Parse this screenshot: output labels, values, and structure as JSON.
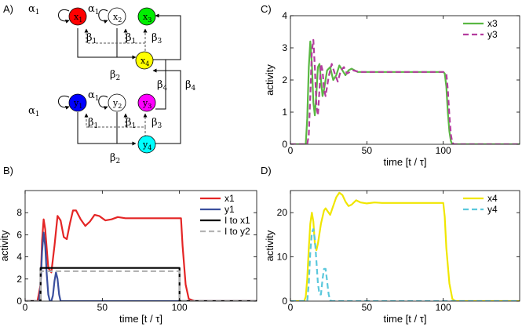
{
  "panel_letters": {
    "A": "A)",
    "B": "B)",
    "C": "C)",
    "D": "D)"
  },
  "diagram": {
    "nodes_top": [
      {
        "id": "x1",
        "base": "x",
        "sub": "1",
        "color": "#ff0000"
      },
      {
        "id": "x2",
        "base": "x",
        "sub": "2",
        "color": "#ffffff"
      },
      {
        "id": "x3",
        "base": "x",
        "sub": "3",
        "color": "#00ee00"
      },
      {
        "id": "x4",
        "base": "x",
        "sub": "4",
        "color": "#ffff00"
      }
    ],
    "nodes_bottom": [
      {
        "id": "y1",
        "base": "y",
        "sub": "1",
        "color": "#0000ff"
      },
      {
        "id": "y2",
        "base": "y",
        "sub": "2",
        "color": "#ffffff"
      },
      {
        "id": "y3",
        "base": "y",
        "sub": "3",
        "color": "#ff00ff"
      },
      {
        "id": "y4",
        "base": "y",
        "sub": "4",
        "color": "#00ffff"
      }
    ],
    "labels": {
      "alpha": "α",
      "beta": "β",
      "s1": "1",
      "s2": "2",
      "s3": "3",
      "s4": "4"
    }
  },
  "chart_data": [
    {
      "panel": "B",
      "type": "line",
      "xlabel": "time [t / τ]",
      "ylabel": "activity",
      "xlim": [
        0,
        150
      ],
      "ylim": [
        0,
        10
      ],
      "xticks": [
        0,
        50,
        100
      ],
      "yticks": [
        0,
        2,
        4,
        6,
        8
      ],
      "legend_position": "top-right",
      "series": [
        {
          "name": "x1",
          "color": "#e42525",
          "dash": "solid",
          "x": [
            0,
            8,
            10,
            11,
            12,
            13,
            15,
            17,
            19,
            21,
            23,
            25,
            27,
            29,
            31,
            33,
            36,
            39,
            42,
            45,
            48,
            52,
            56,
            60,
            65,
            70,
            80,
            90,
            100,
            101,
            102,
            104,
            106,
            110,
            150
          ],
          "y": [
            0,
            0,
            1.5,
            5.5,
            7.4,
            6.5,
            3.0,
            2.6,
            5.0,
            7.7,
            7.3,
            5.8,
            5.6,
            7.0,
            8.2,
            8.2,
            7.4,
            6.8,
            7.2,
            7.8,
            7.7,
            7.3,
            7.4,
            7.6,
            7.5,
            7.5,
            7.5,
            7.5,
            7.5,
            7.5,
            5.0,
            1.5,
            0.2,
            0,
            0
          ]
        },
        {
          "name": "y1",
          "color": "#3a4f9e",
          "dash": "solid",
          "x": [
            0,
            9,
            10,
            11,
            12,
            13,
            14,
            15,
            16,
            17,
            18,
            19,
            20,
            21,
            22,
            23,
            24,
            25,
            150
          ],
          "y": [
            0,
            0,
            1.5,
            4.5,
            6.2,
            5.0,
            2.5,
            0.6,
            0,
            0,
            0.5,
            1.8,
            2.6,
            2.0,
            0.6,
            0,
            0,
            0,
            0
          ]
        },
        {
          "name": "I to x1",
          "color": "#000000",
          "dash": "solid",
          "x": [
            0,
            10,
            10,
            100,
            100,
            150
          ],
          "y": [
            0,
            0,
            3.0,
            3.0,
            0,
            0
          ]
        },
        {
          "name": "I to y2",
          "color": "#b4b4b4",
          "dash": "dashed",
          "x": [
            0,
            10,
            10,
            100,
            100,
            150
          ],
          "y": [
            0,
            0,
            2.7,
            2.7,
            0,
            0
          ]
        }
      ]
    },
    {
      "panel": "C",
      "type": "line",
      "xlabel": "time [t / τ]",
      "ylabel": "activity",
      "xlim": [
        0,
        150
      ],
      "ylim": [
        0,
        4
      ],
      "xticks": [
        0,
        50,
        100
      ],
      "yticks": [
        0,
        1,
        2,
        3,
        4
      ],
      "legend_position": "top-right",
      "series": [
        {
          "name": "x3",
          "color": "#5ab843",
          "dash": "solid",
          "x": [
            0,
            10,
            11,
            12,
            13,
            14,
            15,
            16,
            17,
            18,
            19,
            20,
            21,
            22,
            24,
            26,
            28,
            30,
            32,
            34,
            36,
            38,
            40,
            44,
            48,
            52,
            60,
            70,
            80,
            90,
            100,
            101,
            102,
            103,
            104,
            105,
            106,
            108,
            150
          ],
          "y": [
            0,
            0,
            0.8,
            2.4,
            3.2,
            2.5,
            1.3,
            0.9,
            1.6,
            2.4,
            2.5,
            2.0,
            1.5,
            1.7,
            2.3,
            2.4,
            2.0,
            2.15,
            2.45,
            2.3,
            2.15,
            2.3,
            2.35,
            2.25,
            2.25,
            2.25,
            2.25,
            2.25,
            2.25,
            2.25,
            2.25,
            2.2,
            1.8,
            1.0,
            0.4,
            0.1,
            0,
            0,
            0
          ]
        },
        {
          "name": "y3",
          "color": "#b43c9e",
          "dash": "dashed",
          "x": [
            0,
            11,
            12,
            13,
            14,
            15,
            16,
            17,
            18,
            19,
            20,
            21,
            22,
            23,
            25,
            27,
            29,
            31,
            33,
            35,
            37,
            39,
            41,
            45,
            49,
            53,
            60,
            70,
            80,
            90,
            100,
            102,
            103,
            104,
            105,
            106,
            107,
            109,
            150
          ],
          "y": [
            0,
            0,
            0.3,
            1.5,
            2.9,
            3.25,
            2.4,
            1.2,
            0.9,
            1.7,
            2.5,
            2.3,
            1.7,
            1.5,
            2.1,
            2.5,
            2.2,
            1.95,
            2.3,
            2.4,
            2.2,
            2.25,
            2.3,
            2.25,
            2.25,
            2.25,
            2.25,
            2.25,
            2.25,
            2.25,
            2.25,
            2.2,
            1.7,
            0.9,
            0.3,
            0.05,
            0,
            0,
            0
          ]
        }
      ]
    },
    {
      "panel": "D",
      "type": "line",
      "xlabel": "time [t / τ]",
      "ylabel": "activity",
      "xlim": [
        0,
        150
      ],
      "ylim": [
        0,
        25
      ],
      "xticks": [
        0,
        50,
        100
      ],
      "yticks": [
        0,
        10,
        20
      ],
      "legend_position": "top-right",
      "series": [
        {
          "name": "x4",
          "color": "#f0e600",
          "dash": "solid",
          "x": [
            0,
            9,
            10,
            11,
            12,
            13,
            14,
            15,
            16,
            17,
            18,
            20,
            22,
            23,
            24,
            26,
            28,
            30,
            32,
            34,
            36,
            38,
            40,
            43,
            46,
            50,
            55,
            60,
            70,
            80,
            90,
            100,
            101,
            102,
            104,
            106,
            108,
            150
          ],
          "y": [
            0,
            0,
            1,
            5,
            12,
            17.5,
            20,
            18,
            13,
            11.5,
            13,
            17.5,
            20.5,
            21,
            20.5,
            19.5,
            21.5,
            23.5,
            24.5,
            24,
            22.5,
            21.5,
            21.8,
            22.8,
            22.3,
            22.1,
            22.3,
            22.2,
            22.2,
            22.2,
            22.2,
            22.2,
            19,
            12,
            4,
            0.5,
            0,
            0
          ]
        },
        {
          "name": "y4",
          "color": "#5bc8dc",
          "dash": "dashed",
          "x": [
            0,
            11,
            12,
            13,
            14,
            15,
            16,
            17,
            18,
            19,
            20,
            21,
            22,
            23,
            24,
            25,
            26,
            27,
            150
          ],
          "y": [
            0,
            0,
            4,
            11,
            15.5,
            16.3,
            14,
            9,
            4,
            1.5,
            1.5,
            5,
            7.3,
            7.3,
            4.5,
            1.5,
            0.2,
            0,
            0
          ]
        }
      ]
    }
  ]
}
